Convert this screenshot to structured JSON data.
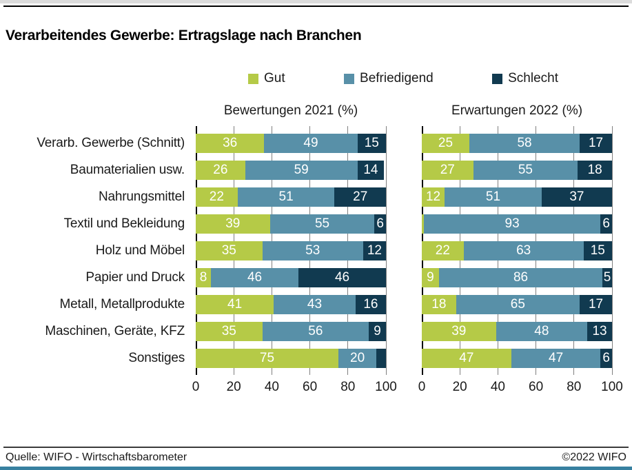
{
  "page": {
    "title": "Verarbeitendes Gewerbe: Ertragslage nach Branchen",
    "footer_left": "Quelle: WIFO - Wirtschaftsbarometer",
    "footer_right": "©2022 WIFO"
  },
  "colors": {
    "gut": "#b5ca47",
    "befriedigend": "#5890a8",
    "schlecht": "#113a50",
    "bottom_bar": "#3780a0",
    "gridline": "#7f7f7f"
  },
  "legend": [
    {
      "label": "Gut",
      "color": "#b5ca47"
    },
    {
      "label": "Befriedigend",
      "color": "#5890a8"
    },
    {
      "label": "Schlecht",
      "color": "#113a50"
    }
  ],
  "chart_data": {
    "type": "bar",
    "orientation": "horizontal",
    "stacked": true,
    "grid": true,
    "xlim": [
      0,
      100
    ],
    "xticks": [
      0,
      20,
      40,
      60,
      80,
      100
    ],
    "categories": [
      "Verarb. Gewerbe (Schnitt)",
      "Baumaterialien usw.",
      "Nahrungsmittel",
      "Textil und Bekleidung",
      "Holz und Möbel",
      "Papier und Druck",
      "Metall, Metallprodukte",
      "Maschinen, Geräte, KFZ",
      "Sonstiges"
    ],
    "series_names": [
      "Gut",
      "Befriedigend",
      "Schlecht"
    ],
    "panels": [
      {
        "title": "Bewertungen 2021 (%)",
        "rows": [
          {
            "values": [
              36,
              49,
              15
            ],
            "labels": [
              "36",
              "49",
              "15"
            ]
          },
          {
            "values": [
              26,
              59,
              14
            ],
            "labels": [
              "26",
              "59",
              "14"
            ]
          },
          {
            "values": [
              22,
              51,
              27
            ],
            "labels": [
              "22",
              "51",
              "27"
            ]
          },
          {
            "values": [
              39,
              55,
              6
            ],
            "labels": [
              "39",
              "55",
              "6"
            ]
          },
          {
            "values": [
              35,
              53,
              12
            ],
            "labels": [
              "35",
              "53",
              "12"
            ]
          },
          {
            "values": [
              8,
              46,
              46
            ],
            "labels": [
              "8",
              "46",
              "46"
            ]
          },
          {
            "values": [
              41,
              43,
              16
            ],
            "labels": [
              "41",
              "43",
              "16"
            ]
          },
          {
            "values": [
              35,
              56,
              9
            ],
            "labels": [
              "35",
              "56",
              "9"
            ]
          },
          {
            "values": [
              75,
              20,
              5
            ],
            "labels": [
              "75",
              "20",
              ""
            ]
          }
        ]
      },
      {
        "title": "Erwartungen 2022 (%)",
        "rows": [
          {
            "values": [
              25,
              58,
              17
            ],
            "labels": [
              "25",
              "58",
              "17"
            ]
          },
          {
            "values": [
              27,
              55,
              18
            ],
            "labels": [
              "27",
              "55",
              "18"
            ]
          },
          {
            "values": [
              12,
              51,
              37
            ],
            "labels": [
              "12",
              "51",
              "37"
            ]
          },
          {
            "values": [
              1,
              93,
              6
            ],
            "labels": [
              "",
              "93",
              "6"
            ]
          },
          {
            "values": [
              22,
              63,
              15
            ],
            "labels": [
              "22",
              "63",
              "15"
            ]
          },
          {
            "values": [
              9,
              86,
              5
            ],
            "labels": [
              "9",
              "86",
              "5"
            ]
          },
          {
            "values": [
              18,
              65,
              17
            ],
            "labels": [
              "18",
              "65",
              "17"
            ]
          },
          {
            "values": [
              39,
              48,
              13
            ],
            "labels": [
              "39",
              "48",
              "13"
            ]
          },
          {
            "values": [
              47,
              47,
              6
            ],
            "labels": [
              "47",
              "47",
              "6"
            ]
          }
        ]
      }
    ]
  }
}
